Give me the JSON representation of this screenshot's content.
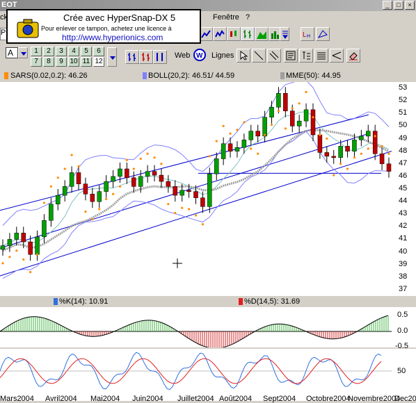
{
  "window": {
    "title": "EOT",
    "menu": [
      "ck",
      "Fenêtre",
      "?"
    ],
    "minimize": "_",
    "maximize": "□",
    "close": "×"
  },
  "stamp": {
    "line1": "Crée avec HyperSnap-DX 5",
    "line2": "Pour enlever ce tampon, achetez une licence à",
    "line3": "http://www.hyperionics.com"
  },
  "toolbar": {
    "field_letter": "A",
    "nums_row1": [
      "1",
      "2",
      "3",
      "4",
      "5",
      "6"
    ],
    "nums_row2": [
      "7",
      "8",
      "9",
      "10",
      "11",
      "12"
    ],
    "web_label": "Web",
    "lines_label": "Lignes",
    "left_letter": "P"
  },
  "indicators": {
    "sar": "SARS(0.02,0.2): 46.26",
    "boll": "BOLL(20,2): 46.51/ 44.59",
    "mme": "MME(50): 44.95",
    "k": "%K(14): 10.91",
    "d": "%D(14,5): 31.69"
  },
  "colors": {
    "sar": "#ff8c00",
    "boll": "#8080ff",
    "mme": "#a0a0a0",
    "k": "#3070e0",
    "d": "#e02020",
    "channel": "#0000cc",
    "candle_up": "#00a000",
    "candle_down": "#c00000"
  },
  "price_axis": [
    "53",
    "52",
    "51",
    "50",
    "49",
    "48",
    "47",
    "46",
    "45",
    "44",
    "43",
    "42",
    "41",
    "40",
    "39",
    "38",
    "37"
  ],
  "macd_axis": [
    "0.5",
    "0.0",
    "-0.5"
  ],
  "stoch_axis": [
    "50"
  ],
  "x_labels": [
    "Mars2004",
    "Avril2004",
    "Mai2004",
    "Juin2004",
    "Juillet2004",
    "Août2004",
    "Sept2004",
    "Octobre2004",
    "Novembre2004",
    "Dec20"
  ],
  "chart_data": {
    "type": "candlestick",
    "series": [
      {
        "name": "SARS(0.02,0.2)",
        "last": 46.26
      },
      {
        "name": "BOLL(20,2)",
        "last_upper": 46.51,
        "last_lower": 44.59
      },
      {
        "name": "MME(50)",
        "last": 44.95
      },
      {
        "name": "%K(14)",
        "last": 10.91
      },
      {
        "name": "%D(14,5)",
        "last": 31.69
      }
    ],
    "price_approx": [
      40.5,
      41.0,
      41.5,
      40.8,
      39.8,
      41.2,
      42.5,
      43.8,
      44.5,
      45.2,
      46.3,
      45.4,
      44.6,
      44.0,
      44.8,
      45.6,
      46.0,
      46.6,
      45.9,
      45.2,
      46.0,
      46.4,
      46.1,
      45.6,
      45.2,
      44.5,
      44.9,
      44.8,
      44.3,
      43.6,
      46.2,
      47.4,
      48.6,
      48.0,
      48.3,
      48.9,
      49.6,
      49.2,
      50.7,
      51.5,
      52.6,
      51.2,
      50.0,
      50.4,
      51.3,
      49.3,
      47.9,
      47.6,
      47.5,
      48.4,
      48.0,
      48.9,
      49.2,
      49.6,
      47.8,
      47.0,
      46.4
    ],
    "ylim": [
      36.5,
      53.5
    ]
  }
}
